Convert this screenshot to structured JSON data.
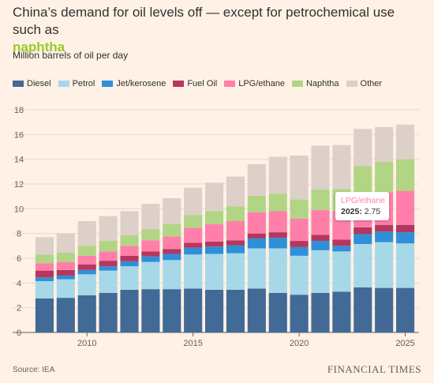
{
  "title": {
    "text": "China’s demand for oil levels off — except for petrochemical use such as",
    "highlight": "naphtha",
    "highlight_color": "#96cc28"
  },
  "subtitle": "Million barrels of oil per day",
  "source": "Source: IEA",
  "brand": "FINANCIAL TIMES",
  "tooltip": {
    "series": "LPG/ethane",
    "year_label": "2025:",
    "value": "2.75"
  },
  "chart_data": {
    "type": "bar",
    "stacked": true,
    "title": "China’s demand for oil levels off — except for petrochemical use such as naphtha",
    "ylabel": "Million barrels of oil per day",
    "xlabel": "",
    "ylim": [
      0,
      18
    ],
    "y_ticks": [
      0,
      2,
      4,
      6,
      8,
      10,
      12,
      14,
      16,
      18
    ],
    "x_ticks": [
      2010,
      2015,
      2020,
      2025
    ],
    "grid": true,
    "legend_position": "top-left",
    "categories": [
      2008,
      2009,
      2010,
      2011,
      2012,
      2013,
      2014,
      2015,
      2016,
      2017,
      2018,
      2019,
      2020,
      2021,
      2022,
      2023,
      2024,
      2025
    ],
    "series": [
      {
        "name": "Diesel",
        "color": "#416a96",
        "values": [
          2.75,
          2.8,
          3.0,
          3.2,
          3.45,
          3.5,
          3.5,
          3.55,
          3.45,
          3.45,
          3.55,
          3.2,
          3.05,
          3.2,
          3.3,
          3.65,
          3.6,
          3.6
        ]
      },
      {
        "name": "Petrol",
        "color": "#a6d8e8",
        "values": [
          1.4,
          1.5,
          1.7,
          1.8,
          1.9,
          2.2,
          2.35,
          2.75,
          2.9,
          2.95,
          3.25,
          3.6,
          3.15,
          3.45,
          3.25,
          3.5,
          3.7,
          3.6
        ]
      },
      {
        "name": "Jet/kerosene",
        "color": "#2f8fd8",
        "values": [
          0.3,
          0.3,
          0.35,
          0.35,
          0.4,
          0.45,
          0.5,
          0.55,
          0.6,
          0.65,
          0.8,
          0.85,
          0.7,
          0.75,
          0.45,
          0.8,
          0.85,
          0.9
        ]
      },
      {
        "name": "Fuel Oil",
        "color": "#b5375e",
        "values": [
          0.55,
          0.45,
          0.45,
          0.45,
          0.45,
          0.4,
          0.4,
          0.4,
          0.4,
          0.4,
          0.4,
          0.45,
          0.5,
          0.5,
          0.5,
          0.55,
          0.55,
          0.6
        ]
      },
      {
        "name": "LPG/ethane",
        "color": "#ff7faa",
        "values": [
          0.6,
          0.65,
          0.7,
          0.75,
          0.8,
          0.9,
          1.0,
          1.2,
          1.4,
          1.55,
          1.7,
          1.7,
          1.8,
          2.0,
          2.3,
          2.55,
          2.65,
          2.75
        ]
      },
      {
        "name": "Naphtha",
        "color": "#b1d584",
        "values": [
          0.7,
          0.75,
          0.8,
          0.85,
          0.85,
          0.9,
          1.0,
          1.05,
          1.05,
          1.2,
          1.35,
          1.4,
          1.55,
          1.65,
          1.8,
          2.4,
          2.45,
          2.55
        ]
      },
      {
        "name": "Other",
        "color": "#dcd0c8",
        "values": [
          1.4,
          1.55,
          2.0,
          2.0,
          1.95,
          2.05,
          2.1,
          2.2,
          2.3,
          2.4,
          2.55,
          3.0,
          3.55,
          3.55,
          3.55,
          3.0,
          2.8,
          2.8
        ]
      }
    ]
  }
}
